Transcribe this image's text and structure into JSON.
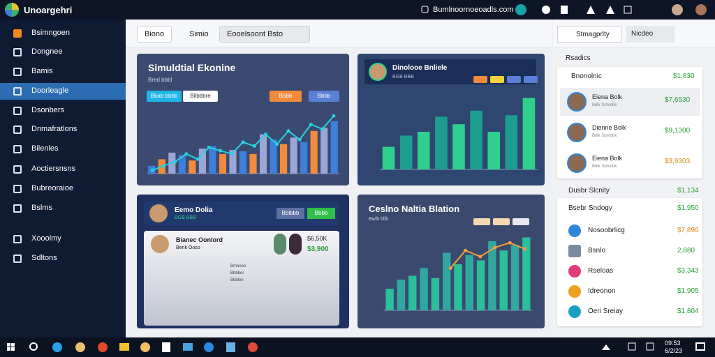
{
  "topbar": {
    "app_name": "Unoargehri",
    "search": "Bumlnoornoeoadls.com"
  },
  "sidebar": {
    "items": [
      "Bsimngoen",
      "Dongnee",
      "Bamis",
      "Doorleagle",
      "Dsonbers",
      "Dnmafratlons",
      "Bilenles",
      "Aoctiersnsns",
      "Bubreoraioe",
      "Bslms",
      "Xooolmy",
      "Sdltons"
    ],
    "active": 3
  },
  "tabs": [
    "Biono",
    "Simio",
    "Eooelsoont Bsto"
  ],
  "panels": [
    {
      "title": "Simuldtial Ekonine",
      "subtitle": "Bred bbbl",
      "buttons": [
        "Bbab bbbb",
        "Bilbbbre",
        "Bbbb",
        "Bbbb"
      ],
      "chart": {
        "type": "bar",
        "ylim": [
          0,
          100
        ],
        "values": [
          12,
          22,
          32,
          28,
          20,
          38,
          42,
          30,
          36,
          34,
          30,
          60,
          52,
          45,
          55,
          48,
          65,
          70,
          80
        ],
        "colors": [
          "#3d7fd9",
          "#f28b3c",
          "#9aa6d6"
        ],
        "line": [
          5,
          12,
          18,
          30,
          22,
          40,
          35,
          30,
          48,
          42,
          60,
          45,
          65,
          52,
          75,
          68,
          88
        ],
        "line_color": "#27d3e0"
      }
    },
    {
      "title": "Dinolooe Bnliele",
      "subtitle": "BGB BBB",
      "chart": {
        "type": "bar",
        "ylim": [
          0,
          100
        ],
        "values": [
          30,
          45,
          50,
          70,
          60,
          78,
          50,
          72,
          95
        ],
        "colors": [
          "#2fd08e",
          "#1c9e8e"
        ]
      }
    },
    {
      "title": "Eemo Dolia",
      "subtitle": "BGB BBB",
      "buttons": [
        "Bblbbb",
        "Bbbb"
      ],
      "card_title": "Bianec Oonlord",
      "card_subtitle": "Benk Ooso",
      "amounts": [
        "$6,50K",
        "$3,900"
      ],
      "legend": [
        "Bmooee",
        "Bbbber",
        "Bbblee"
      ],
      "pie": {
        "type": "pie",
        "values": [
          30,
          22,
          20,
          16,
          12
        ],
        "colors": [
          "#f2a23c",
          "#3d8fe0",
          "#2ecfd0",
          "#9bd23c",
          "#e04fa8"
        ]
      },
      "chart": {
        "type": "bar",
        "ylim": [
          0,
          100
        ],
        "values": [
          18,
          28,
          38,
          32,
          48,
          42,
          60,
          55,
          70,
          58,
          75,
          62
        ],
        "colors": [
          "#27c6e0",
          "#f0d23c",
          "#8e5fe0",
          "#3d7fd9"
        ],
        "line": [
          15,
          25,
          30,
          35,
          45,
          50,
          62,
          70,
          78,
          88
        ],
        "line_color": "#e8dc3c"
      }
    },
    {
      "title": "Ceslno Naltia Blation",
      "subtitle": "Bwlb bllb",
      "chart": {
        "type": "bar",
        "ylim": [
          0,
          100
        ],
        "values": [
          28,
          40,
          45,
          55,
          42,
          75,
          60,
          72,
          65,
          90,
          78,
          85,
          95
        ],
        "colors": [
          "#2bbf9a",
          "#30a8a0"
        ],
        "line": [
          55,
          78,
          70,
          82,
          88,
          80
        ],
        "line_color": "#f0a040"
      }
    }
  ],
  "right_panel": {
    "tabs": [
      "Stmagprlty",
      "Nicdeo"
    ],
    "subheader": "Rsadics",
    "card": {
      "title": "Bnonolnic",
      "amount": "$1,830",
      "people": [
        {
          "name": "Eiena Bolk",
          "detail": "Bdlk Sdmobk",
          "amount": "$7,6530",
          "accent": "#2c9f3a"
        },
        {
          "name": "Dienne Bolk",
          "detail": "Bdlk Sdmobk",
          "amount": "$9,1300",
          "accent": "#2c9f3a"
        },
        {
          "name": "Eiena Bolk",
          "detail": "Bdlk Sdmobk",
          "amount": "$3,9303",
          "accent": "#e08a1c"
        }
      ]
    },
    "section": {
      "title": "Dusbr Slcnity",
      "amount": "$1,134"
    },
    "list": {
      "title": "Bsebr Sndogy",
      "amount": "$1,950",
      "items": [
        {
          "label": "Nosoobrlicg",
          "amount": "$7,896",
          "accent": "#e08a1c",
          "icon": "#2f86d8"
        },
        {
          "label": "Bsnlo",
          "amount": "2,880",
          "accent": "#2c9f3a",
          "icon": "#7a8aa0"
        },
        {
          "label": "Rseloas",
          "amount": "$3,343",
          "accent": "#2c9f3a",
          "icon": "#e03a7a"
        },
        {
          "label": "Idreonon",
          "amount": "$1,905",
          "accent": "#2c9f3a",
          "icon": "#f0a020"
        },
        {
          "label": "Oeri Sreiay",
          "amount": "$1,804",
          "accent": "#2c9f3a",
          "icon": "#1aa0c0"
        }
      ]
    }
  },
  "taskbar": {
    "clock": [
      "09:53",
      "6/2/23"
    ]
  }
}
